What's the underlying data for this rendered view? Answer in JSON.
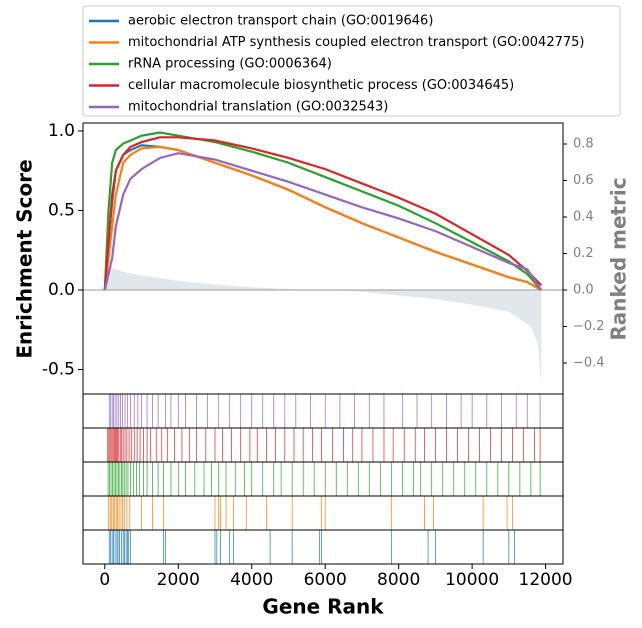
{
  "chart_data": {
    "type": "gsea",
    "xlabel": "Gene Rank",
    "ylabel": "Enrichment Score",
    "y2label": "Ranked metric",
    "xlim": [
      -594,
      12474
    ],
    "xticks": [
      0,
      2000,
      4000,
      6000,
      8000,
      10000,
      12000
    ],
    "ylim": [
      -0.654,
      1.05
    ],
    "yticks": [
      {
        "value": -0.5,
        "label": "-0.5"
      },
      {
        "value": 0,
        "label": "0.0"
      },
      0.5,
      {
        "value": 1,
        "label": "1.0"
      }
    ],
    "y2lim": [
      -0.57,
      0.915
    ],
    "y2ticks": [
      {
        "value": -0.4,
        "label": "−0.4"
      },
      {
        "value": -0.2,
        "label": "−0.2"
      },
      {
        "value": 0,
        "label": "0.0"
      },
      0.2,
      0.4,
      0.6,
      0.8
    ],
    "legend": "upper center",
    "x": [
      0,
      100,
      200,
      300,
      500,
      700,
      1000,
      1500,
      2000,
      3000,
      4000,
      5000,
      6000,
      7000,
      8000,
      9000,
      10000,
      11000,
      11500,
      11880
    ],
    "series": [
      {
        "name": "aerobic electron transport chain (GO:0019646)",
        "color": "#1f77b4",
        "values": [
          0,
          0.3,
          0.55,
          0.75,
          0.85,
          0.88,
          0.91,
          0.9,
          0.88,
          0.8,
          0.72,
          0.63,
          0.52,
          0.42,
          0.33,
          0.24,
          0.16,
          0.08,
          0.05,
          0
        ],
        "hits": [
          120,
          160,
          200,
          240,
          280,
          330,
          360,
          400,
          450,
          500,
          540,
          580,
          620,
          650,
          700,
          1600,
          1650,
          3000,
          3050,
          3150,
          3400,
          3500,
          4500,
          5100,
          5850,
          5900,
          7800,
          8800,
          9000,
          10300,
          11000,
          11150
        ]
      },
      {
        "name": "mitochondrial ATP synthesis coupled electron transport (GO:0042775)",
        "color": "#ff7f0e",
        "values": [
          0,
          0.2,
          0.4,
          0.6,
          0.8,
          0.85,
          0.89,
          0.9,
          0.88,
          0.8,
          0.72,
          0.63,
          0.52,
          0.42,
          0.33,
          0.24,
          0.16,
          0.08,
          0.05,
          0
        ],
        "hits": [
          100,
          150,
          190,
          230,
          270,
          310,
          350,
          390,
          440,
          480,
          530,
          600,
          680,
          1000,
          1300,
          1600,
          3000,
          3100,
          3150,
          3300,
          3500,
          3850,
          4400,
          5100,
          5900,
          6000,
          7800,
          8700,
          8950,
          10300,
          10950,
          11100
        ]
      },
      {
        "name": "rRNA processing (GO:0006364)",
        "color": "#2ca02c",
        "values": [
          0,
          0.5,
          0.8,
          0.88,
          0.92,
          0.94,
          0.97,
          0.99,
          0.97,
          0.93,
          0.87,
          0.8,
          0.71,
          0.62,
          0.53,
          0.42,
          0.3,
          0.18,
          0.1,
          0
        ],
        "hits": [
          90,
          130,
          170,
          210,
          250,
          290,
          330,
          370,
          410,
          450,
          490,
          530,
          580,
          630,
          700,
          780,
          860,
          950,
          1050,
          1150,
          1300,
          1450,
          1600,
          1800,
          2000,
          2200,
          2450,
          2700,
          2900,
          3100,
          3300,
          3550,
          3800,
          4000,
          4300,
          4600,
          4800,
          5100,
          5400,
          5700,
          6000,
          6300,
          6600,
          6900,
          7200,
          7500,
          7800,
          8100,
          8400,
          8600,
          8900,
          9200,
          9500,
          9800,
          10100,
          10400,
          10700,
          11000,
          11300,
          11600,
          11850
        ]
      },
      {
        "name": "cellular macromolecule biosynthetic process (GO:0034645)",
        "color": "#d62728",
        "values": [
          0,
          0.3,
          0.6,
          0.75,
          0.85,
          0.9,
          0.93,
          0.96,
          0.96,
          0.94,
          0.89,
          0.83,
          0.76,
          0.67,
          0.58,
          0.48,
          0.35,
          0.22,
          0.12,
          0.03
        ],
        "hits": [
          80,
          110,
          140,
          170,
          200,
          230,
          260,
          290,
          320,
          350,
          380,
          420,
          460,
          500,
          550,
          600,
          660,
          720,
          800,
          880,
          960,
          1050,
          1150,
          1250,
          1400,
          1550,
          1700,
          1900,
          2100,
          2300,
          2500,
          2750,
          3000,
          3200,
          3450,
          3700,
          3950,
          4150,
          4400,
          4650,
          4900,
          5150,
          5400,
          5650,
          5900,
          6200,
          6500,
          6750,
          7000,
          7300,
          7600,
          7850,
          8150,
          8450,
          8700,
          9000,
          9300,
          9600,
          9900,
          10200,
          10500,
          10800,
          11100,
          11400,
          11700,
          11850
        ]
      },
      {
        "name": "mitochondrial translation (GO:0032543)",
        "color": "#9467bd",
        "values": [
          0,
          0.1,
          0.2,
          0.4,
          0.6,
          0.7,
          0.76,
          0.83,
          0.86,
          0.82,
          0.75,
          0.68,
          0.6,
          0.52,
          0.45,
          0.37,
          0.27,
          0.17,
          0.13,
          0
        ],
        "hits": [
          120,
          160,
          200,
          240,
          280,
          330,
          380,
          430,
          480,
          550,
          620,
          700,
          800,
          900,
          1000,
          1150,
          1300,
          1450,
          1650,
          1800,
          2000,
          2200,
          2500,
          2800,
          3100,
          3400,
          3700,
          4000,
          4300,
          4600,
          4900,
          5200,
          5600,
          6000,
          6400,
          6800,
          7200,
          7600,
          8100,
          8500,
          8900,
          9300,
          9700,
          10000,
          10400,
          10800,
          11200,
          11500,
          11850
        ]
      }
    ],
    "ranked_metric": {
      "color": "#d5dde4",
      "axis": "y2",
      "x": [
        0,
        30,
        200,
        500,
        1000,
        2000,
        3000,
        4000,
        5000,
        6000,
        7000,
        8000,
        9000,
        10000,
        11000,
        11600,
        11800,
        11880
      ],
      "values": [
        0,
        0.15,
        0.12,
        0.1,
        0.08,
        0.05,
        0.03,
        0.015,
        0.005,
        0,
        -0.01,
        -0.03,
        -0.05,
        -0.08,
        -0.12,
        -0.2,
        -0.3,
        -0.53
      ]
    }
  }
}
